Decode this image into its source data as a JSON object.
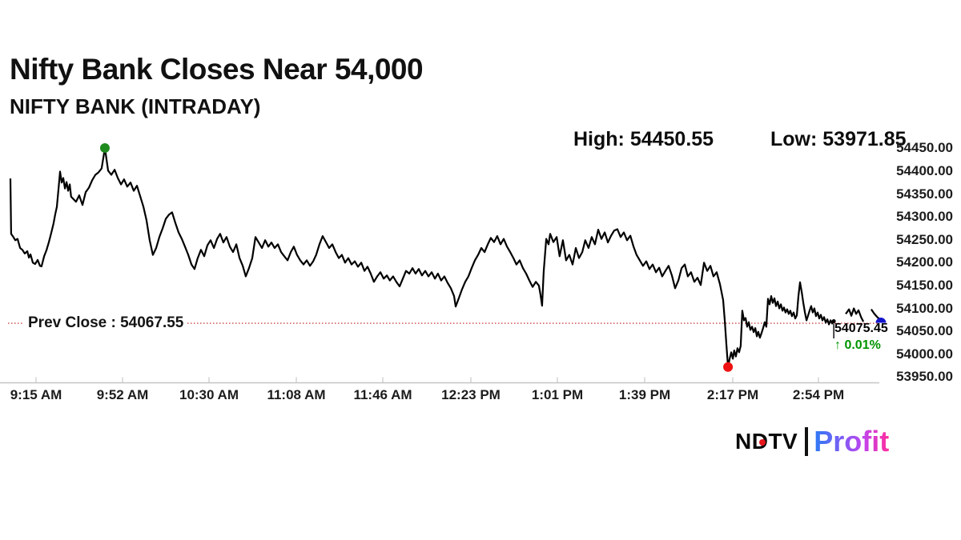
{
  "header": {
    "title": "Nifty Bank Closes Near 54,000",
    "subtitle": "NIFTY BANK (INTRADAY)",
    "high_label": "High: 54450.55",
    "low_label": "Low: 53971.85"
  },
  "chart_data": {
    "type": "line",
    "title": "NIFTY BANK (INTRADAY)",
    "series_name": "NIFTY BANK",
    "line_color": "#000000",
    "grid": false,
    "high": 54450.55,
    "low": 53971.85,
    "prev_close": 54067.55,
    "last_price": 54075.45,
    "prev_close_label": "Prev Close : 54067.55",
    "last_price_label": "54075.45",
    "change_pct_label": "↑ 0.01%",
    "prev_close_color": "#cc4444",
    "marker_colors": {
      "high": "#1e8b1e",
      "low": "#ee1111",
      "segment_end": "#000000",
      "last": "#1414cc"
    },
    "y_axis": {
      "position": "right",
      "min": 53950,
      "max": 54450,
      "step": 50,
      "tick_labels": [
        "54450.00",
        "54400.00",
        "54350.00",
        "54300.00",
        "54250.00",
        "54200.00",
        "54150.00",
        "54100.00",
        "54050.00",
        "54000.00",
        "53950.00"
      ]
    },
    "x_axis": {
      "start_time": "9:15 AM",
      "end_time": "3:30 PM",
      "tick_labels": [
        "9:15 AM",
        "9:52 AM",
        "10:30 AM",
        "11:08 AM",
        "11:46 AM",
        "12:23 PM",
        "1:01 PM",
        "1:39 PM",
        "2:17 PM",
        "2:54 PM"
      ]
    },
    "markers": {
      "high": {
        "m": 40.9,
        "v": 54450.55
      },
      "low": {
        "m": 310.7,
        "v": 53971.85
      },
      "segment_end": {
        "m": 356.5,
        "v": 54072
      },
      "last": {
        "m": 376.9,
        "v": 54075.45
      }
    },
    "series_points": [
      [
        0,
        54384
      ],
      [
        0.3,
        54263
      ],
      [
        1,
        54258
      ],
      [
        2.1,
        54249
      ],
      [
        3.1,
        54252
      ],
      [
        4.2,
        54232
      ],
      [
        5.2,
        54228
      ],
      [
        6.2,
        54220
      ],
      [
        7.3,
        54225
      ],
      [
        8,
        54211
      ],
      [
        8.7,
        54218
      ],
      [
        9.7,
        54200
      ],
      [
        10.7,
        54197
      ],
      [
        11.8,
        54206
      ],
      [
        12.8,
        54193
      ],
      [
        13.5,
        54192
      ],
      [
        14.6,
        54214
      ],
      [
        15.6,
        54227
      ],
      [
        16.6,
        54244
      ],
      [
        17.7,
        54265
      ],
      [
        18.7,
        54286
      ],
      [
        19.4,
        54305
      ],
      [
        20.1,
        54322
      ],
      [
        20.8,
        54360
      ],
      [
        21.5,
        54399
      ],
      [
        22.2,
        54375
      ],
      [
        22.9,
        54385
      ],
      [
        23.6,
        54362
      ],
      [
        24.3,
        54376
      ],
      [
        25,
        54357
      ],
      [
        25.7,
        54371
      ],
      [
        26.3,
        54344
      ],
      [
        28.4,
        54333
      ],
      [
        29.8,
        54347
      ],
      [
        31.2,
        54326
      ],
      [
        32.6,
        54354
      ],
      [
        34,
        54364
      ],
      [
        35.4,
        54380
      ],
      [
        36.8,
        54392
      ],
      [
        38.1,
        54397
      ],
      [
        39.5,
        54406
      ],
      [
        40.9,
        54450.55
      ],
      [
        42.3,
        54401
      ],
      [
        43.7,
        54392
      ],
      [
        45.1,
        54403
      ],
      [
        46.5,
        54385
      ],
      [
        47.9,
        54371
      ],
      [
        49.2,
        54382
      ],
      [
        50.6,
        54366
      ],
      [
        52,
        54375
      ],
      [
        53.4,
        54357
      ],
      [
        54.8,
        54368
      ],
      [
        56.2,
        54345
      ],
      [
        57.6,
        54322
      ],
      [
        58.9,
        54293
      ],
      [
        60.3,
        54249
      ],
      [
        61.7,
        54217
      ],
      [
        63.1,
        54232
      ],
      [
        64.5,
        54256
      ],
      [
        65.9,
        54275
      ],
      [
        67.3,
        54296
      ],
      [
        68.7,
        54305
      ],
      [
        70,
        54310
      ],
      [
        71.4,
        54287
      ],
      [
        72.8,
        54266
      ],
      [
        74.2,
        54252
      ],
      [
        75.6,
        54235
      ],
      [
        77,
        54217
      ],
      [
        78.4,
        54196
      ],
      [
        79.7,
        54186
      ],
      [
        81.1,
        54210
      ],
      [
        82.5,
        54228
      ],
      [
        83.9,
        54214
      ],
      [
        85.3,
        54238
      ],
      [
        86.7,
        54249
      ],
      [
        88.1,
        54232
      ],
      [
        89.5,
        54252
      ],
      [
        90.8,
        54263
      ],
      [
        92.2,
        54244
      ],
      [
        93.6,
        54256
      ],
      [
        95,
        54235
      ],
      [
        96.4,
        54223
      ],
      [
        97.8,
        54240
      ],
      [
        99.2,
        54210
      ],
      [
        100.6,
        54193
      ],
      [
        101.9,
        54170
      ],
      [
        103.3,
        54188
      ],
      [
        104.7,
        54210
      ],
      [
        106.1,
        54256
      ],
      [
        107.5,
        54244
      ],
      [
        108.9,
        54232
      ],
      [
        110.3,
        54249
      ],
      [
        111.7,
        54235
      ],
      [
        113,
        54244
      ],
      [
        114.4,
        54232
      ],
      [
        115.8,
        54240
      ],
      [
        117.2,
        54223
      ],
      [
        118.6,
        54214
      ],
      [
        120,
        54205
      ],
      [
        121.4,
        54223
      ],
      [
        122.7,
        54235
      ],
      [
        124.1,
        54217
      ],
      [
        125.5,
        54205
      ],
      [
        126.9,
        54196
      ],
      [
        128.3,
        54205
      ],
      [
        129.7,
        54193
      ],
      [
        131.1,
        54203
      ],
      [
        132.4,
        54217
      ],
      [
        133.8,
        54240
      ],
      [
        135.2,
        54258
      ],
      [
        136.6,
        54245
      ],
      [
        138,
        54232
      ],
      [
        139.4,
        54240
      ],
      [
        140.8,
        54223
      ],
      [
        142.2,
        54210
      ],
      [
        143.5,
        54217
      ],
      [
        144.9,
        54200
      ],
      [
        146.3,
        54210
      ],
      [
        147.7,
        54196
      ],
      [
        149.1,
        54203
      ],
      [
        150.5,
        54191
      ],
      [
        151.9,
        54200
      ],
      [
        153.3,
        54182
      ],
      [
        154.6,
        54191
      ],
      [
        156,
        54176
      ],
      [
        157.4,
        54158
      ],
      [
        158.8,
        54170
      ],
      [
        160.2,
        54179
      ],
      [
        161.6,
        54165
      ],
      [
        163,
        54172
      ],
      [
        164.3,
        54161
      ],
      [
        165.7,
        54170
      ],
      [
        167.1,
        54158
      ],
      [
        168.5,
        54148
      ],
      [
        169.9,
        54165
      ],
      [
        171.3,
        54182
      ],
      [
        172.7,
        54176
      ],
      [
        174.1,
        54188
      ],
      [
        175.4,
        54176
      ],
      [
        176.8,
        54186
      ],
      [
        178.2,
        54172
      ],
      [
        179.6,
        54182
      ],
      [
        181,
        54170
      ],
      [
        182.4,
        54179
      ],
      [
        183.8,
        54165
      ],
      [
        185.1,
        54176
      ],
      [
        186.5,
        54161
      ],
      [
        187.9,
        54170
      ],
      [
        189.3,
        54156
      ],
      [
        190.7,
        54144
      ],
      [
        192.1,
        54127
      ],
      [
        192.8,
        54104
      ],
      [
        194.2,
        54123
      ],
      [
        195.5,
        54141
      ],
      [
        196.9,
        54158
      ],
      [
        198.3,
        54170
      ],
      [
        199.7,
        54188
      ],
      [
        201.1,
        54205
      ],
      [
        202.5,
        54217
      ],
      [
        203.9,
        54232
      ],
      [
        205.3,
        54223
      ],
      [
        206.7,
        54240
      ],
      [
        208,
        54254
      ],
      [
        209.4,
        54245
      ],
      [
        210.8,
        54258
      ],
      [
        212.2,
        54240
      ],
      [
        213.6,
        54252
      ],
      [
        215,
        54235
      ],
      [
        216.4,
        54223
      ],
      [
        217.8,
        54210
      ],
      [
        219.1,
        54196
      ],
      [
        220.5,
        54205
      ],
      [
        221.9,
        54188
      ],
      [
        223.3,
        54176
      ],
      [
        224.7,
        54161
      ],
      [
        226.1,
        54147
      ],
      [
        227.5,
        54158
      ],
      [
        228.8,
        54150
      ],
      [
        229.5,
        54130
      ],
      [
        230.2,
        54106
      ],
      [
        230.9,
        54180
      ],
      [
        232,
        54252
      ],
      [
        233,
        54240
      ],
      [
        233.7,
        54263
      ],
      [
        235.1,
        54245
      ],
      [
        236.5,
        54256
      ],
      [
        237.8,
        54214
      ],
      [
        239.2,
        54249
      ],
      [
        240.6,
        54205
      ],
      [
        242,
        54217
      ],
      [
        243.4,
        54196
      ],
      [
        244.8,
        54232
      ],
      [
        246.2,
        54210
      ],
      [
        247.6,
        54223
      ],
      [
        248.9,
        54249
      ],
      [
        250.3,
        54232
      ],
      [
        251.7,
        54256
      ],
      [
        253.1,
        54240
      ],
      [
        254.5,
        54272
      ],
      [
        255.9,
        54252
      ],
      [
        257.3,
        54266
      ],
      [
        258.7,
        54244
      ],
      [
        260,
        54258
      ],
      [
        261.4,
        54270
      ],
      [
        262.8,
        54273
      ],
      [
        264.2,
        54256
      ],
      [
        265.6,
        54266
      ],
      [
        267,
        54249
      ],
      [
        268.4,
        54259
      ],
      [
        269.8,
        54235
      ],
      [
        271.1,
        54217
      ],
      [
        272.5,
        54205
      ],
      [
        273.9,
        54193
      ],
      [
        275.3,
        54203
      ],
      [
        276.7,
        54186
      ],
      [
        278.1,
        54196
      ],
      [
        279.5,
        54179
      ],
      [
        280.9,
        54189
      ],
      [
        282.2,
        54170
      ],
      [
        283.6,
        54182
      ],
      [
        285,
        54193
      ],
      [
        286.4,
        54172
      ],
      [
        287.8,
        54144
      ],
      [
        289.2,
        54161
      ],
      [
        290.6,
        54188
      ],
      [
        292,
        54196
      ],
      [
        293.3,
        54170
      ],
      [
        294.7,
        54179
      ],
      [
        296.1,
        54158
      ],
      [
        297.5,
        54167
      ],
      [
        298.9,
        54151
      ],
      [
        300.3,
        54200
      ],
      [
        301.7,
        54182
      ],
      [
        303.1,
        54193
      ],
      [
        304.4,
        54170
      ],
      [
        305.8,
        54179
      ],
      [
        307.2,
        54153
      ],
      [
        308.6,
        54118
      ],
      [
        309.3,
        54074
      ],
      [
        310,
        54022
      ],
      [
        310.7,
        53971.85
      ],
      [
        311.4,
        53990
      ],
      [
        312.1,
        54004
      ],
      [
        312.8,
        53990
      ],
      [
        313.4,
        54008
      ],
      [
        314.1,
        53995
      ],
      [
        314.8,
        54013
      ],
      [
        315.5,
        54004
      ],
      [
        316.2,
        54018
      ],
      [
        316.9,
        54095
      ],
      [
        317.6,
        54074
      ],
      [
        318.3,
        54079
      ],
      [
        319,
        54060
      ],
      [
        319.7,
        54070
      ],
      [
        320.4,
        54053
      ],
      [
        321.1,
        54060
      ],
      [
        321.8,
        54048
      ],
      [
        322.5,
        54057
      ],
      [
        323.2,
        54039
      ],
      [
        323.8,
        54049
      ],
      [
        324.5,
        54036
      ],
      [
        325.2,
        54046
      ],
      [
        325.9,
        54057
      ],
      [
        326.6,
        54070
      ],
      [
        327.3,
        54060
      ],
      [
        328,
        54121
      ],
      [
        328.7,
        54109
      ],
      [
        329.4,
        54127
      ],
      [
        330.1,
        54112
      ],
      [
        330.8,
        54122
      ],
      [
        331.5,
        54105
      ],
      [
        332.2,
        54115
      ],
      [
        332.9,
        54100
      ],
      [
        333.6,
        54109
      ],
      [
        334.3,
        54095
      ],
      [
        334.9,
        54102
      ],
      [
        335.6,
        54091
      ],
      [
        336.3,
        54098
      ],
      [
        337,
        54088
      ],
      [
        337.7,
        54095
      ],
      [
        338.4,
        54083
      ],
      [
        339.1,
        54091
      ],
      [
        339.8,
        54078
      ],
      [
        340.5,
        54085
      ],
      [
        341.2,
        54127
      ],
      [
        341.9,
        54157
      ],
      [
        342.6,
        54136
      ],
      [
        343.3,
        54112
      ],
      [
        344,
        54091
      ],
      [
        344.7,
        54074
      ],
      [
        345.3,
        54083
      ],
      [
        346,
        54095
      ],
      [
        346.7,
        54105
      ],
      [
        347.4,
        54091
      ],
      [
        348.1,
        54100
      ],
      [
        348.8,
        54083
      ],
      [
        349.5,
        54091
      ],
      [
        350.2,
        54078
      ],
      [
        350.9,
        54086
      ],
      [
        351.6,
        54074
      ],
      [
        352.3,
        54081
      ],
      [
        353,
        54069
      ],
      [
        353.7,
        54076
      ],
      [
        354.4,
        54065
      ],
      [
        355.1,
        54074
      ],
      [
        355.8,
        54067
      ],
      [
        356.5,
        54072
      ],
      null,
      [
        361.7,
        54088
      ],
      [
        363.1,
        54098
      ],
      [
        364.1,
        54084
      ],
      [
        365.2,
        54100
      ],
      [
        366.2,
        54088
      ],
      [
        367.2,
        54096
      ],
      [
        368.3,
        54081
      ],
      [
        369.3,
        54071
      ],
      null,
      [
        372.7,
        54098
      ],
      [
        374.1,
        54088
      ],
      [
        375.5,
        54080
      ],
      [
        376.9,
        54075.45
      ]
    ]
  },
  "footer": {
    "brand_left": "NDTV",
    "brand_right": "Profit",
    "brand_dot_color": "#e8151c"
  }
}
